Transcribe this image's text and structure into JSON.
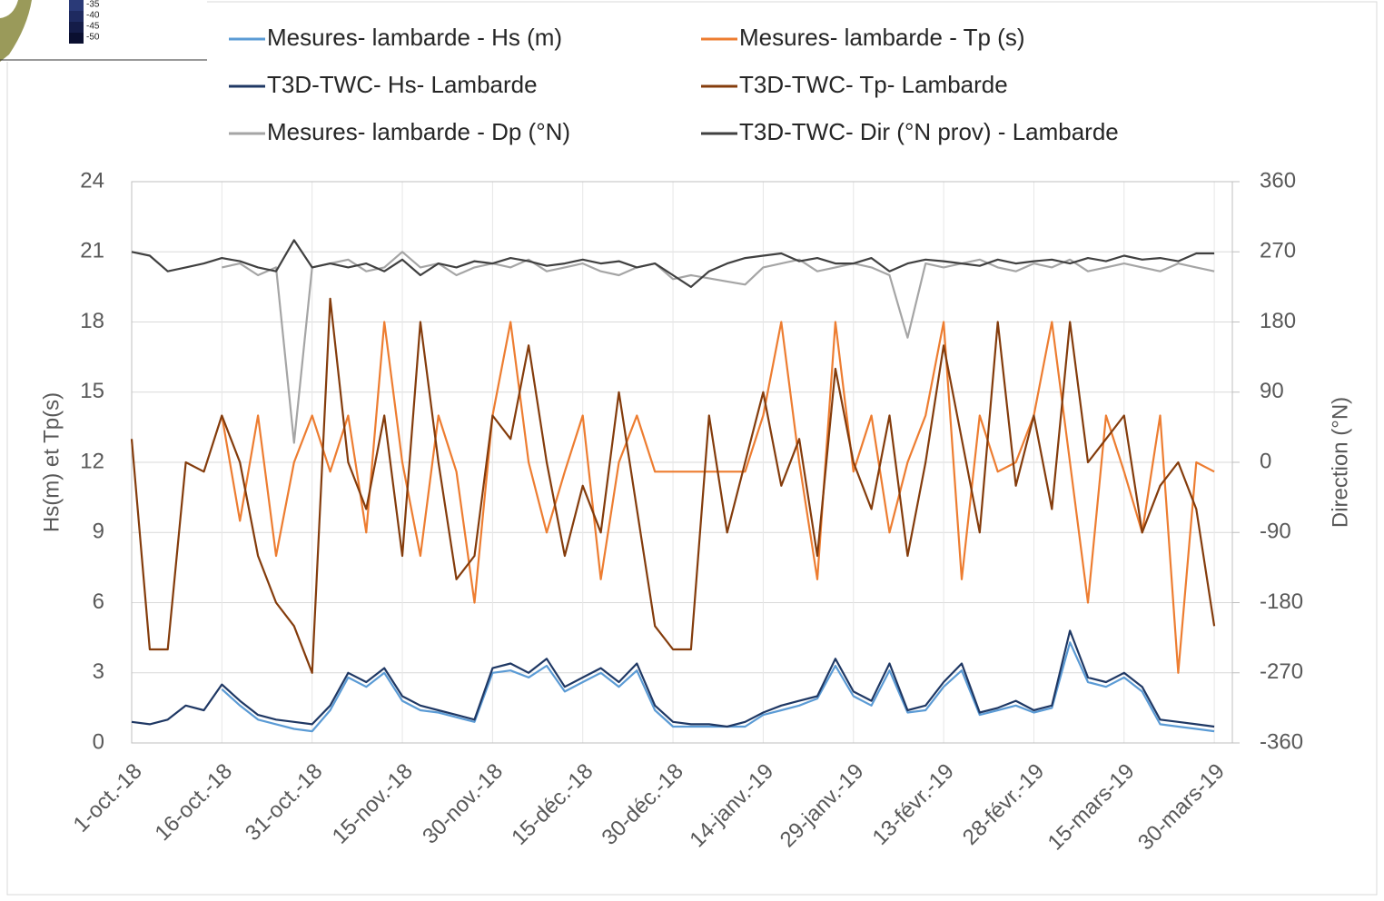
{
  "chart_data": {
    "type": "line",
    "y_label": "Hs(m) et Tp(s)",
    "y2_label": "Direction (°N)",
    "inset_labels": [
      "-35",
      "-40",
      "-45",
      "-50"
    ],
    "x": [
      "2018-10-01",
      "2018-10-04",
      "2018-10-07",
      "2018-10-10",
      "2018-10-13",
      "2018-10-16",
      "2018-10-19",
      "2018-10-22",
      "2018-10-25",
      "2018-10-28",
      "2018-10-31",
      "2018-11-03",
      "2018-11-06",
      "2018-11-09",
      "2018-11-12",
      "2018-11-15",
      "2018-11-18",
      "2018-11-21",
      "2018-11-24",
      "2018-11-27",
      "2018-11-30",
      "2018-12-03",
      "2018-12-06",
      "2018-12-09",
      "2018-12-12",
      "2018-12-15",
      "2018-12-18",
      "2018-12-21",
      "2018-12-24",
      "2018-12-27",
      "2018-12-30",
      "2019-01-02",
      "2019-01-05",
      "2019-01-08",
      "2019-01-11",
      "2019-01-14",
      "2019-01-17",
      "2019-01-20",
      "2019-01-23",
      "2019-01-26",
      "2019-01-29",
      "2019-02-01",
      "2019-02-04",
      "2019-02-07",
      "2019-02-10",
      "2019-02-13",
      "2019-02-16",
      "2019-02-19",
      "2019-02-22",
      "2019-02-25",
      "2019-02-28",
      "2019-03-03",
      "2019-03-06",
      "2019-03-09",
      "2019-03-12",
      "2019-03-15",
      "2019-03-18",
      "2019-03-21",
      "2019-03-24",
      "2019-03-27",
      "2019-03-30"
    ],
    "xlim": [
      "2018-10-01",
      "2019-04-02"
    ],
    "xticks": [
      {
        "value": "2018-10-01",
        "label": "1-oct.-18"
      },
      {
        "value": "2018-10-16",
        "label": "16-oct.-18"
      },
      {
        "value": "2018-10-31",
        "label": "31-oct.-18"
      },
      {
        "value": "2018-11-15",
        "label": "15-nov.-18"
      },
      {
        "value": "2018-11-30",
        "label": "30-nov.-18"
      },
      {
        "value": "2018-12-15",
        "label": "15-déc.-18"
      },
      {
        "value": "2018-12-30",
        "label": "30-déc.-18"
      },
      {
        "value": "2019-01-14",
        "label": "14-janv.-19"
      },
      {
        "value": "2019-01-29",
        "label": "29-janv.-19"
      },
      {
        "value": "2019-02-13",
        "label": "13-févr.-19"
      },
      {
        "value": "2019-02-28",
        "label": "28-févr.-19"
      },
      {
        "value": "2019-03-15",
        "label": "15-mars-19"
      },
      {
        "value": "2019-03-30",
        "label": "30-mars-19"
      }
    ],
    "ylim": [
      0,
      24
    ],
    "yticks": [
      0,
      3,
      6,
      9,
      12,
      15,
      18,
      21,
      24
    ],
    "y2lim": [
      -360,
      360
    ],
    "y2ticks": [
      -360,
      -270,
      -180,
      -90,
      0,
      90,
      180,
      270,
      360
    ],
    "grid": true,
    "series": [
      {
        "name": "Mesures- lambarde - Hs (m)",
        "color": "#5b9bd5",
        "values": [
          null,
          null,
          null,
          null,
          null,
          2.3,
          1.6,
          1.0,
          0.8,
          0.6,
          0.5,
          1.4,
          2.8,
          2.4,
          3.0,
          1.8,
          1.4,
          1.3,
          1.1,
          0.9,
          3.0,
          3.1,
          2.8,
          3.3,
          2.2,
          2.6,
          3.0,
          2.4,
          3.1,
          1.4,
          0.7,
          0.7,
          0.7,
          0.7,
          0.7,
          1.2,
          1.4,
          1.6,
          1.9,
          3.3,
          2.0,
          1.6,
          3.1,
          1.3,
          1.4,
          2.4,
          3.1,
          1.2,
          1.4,
          1.6,
          1.3,
          1.5,
          4.3,
          2.6,
          2.4,
          2.8,
          2.2,
          0.8,
          0.7,
          0.6,
          0.5
        ]
      },
      {
        "name": "Mesures- lambarde - Tp (s)",
        "color": "#ed7d31",
        "values": [
          null,
          null,
          null,
          null,
          null,
          14,
          9.5,
          14,
          8,
          12,
          14,
          11.6,
          14,
          9,
          18,
          12,
          8,
          14,
          11.6,
          6,
          14,
          18,
          12,
          9,
          11.6,
          14,
          7,
          12,
          14,
          11.6,
          11.6,
          11.6,
          11.6,
          11.6,
          11.6,
          14,
          18,
          12,
          7,
          18,
          11.6,
          14,
          9,
          12,
          14,
          18,
          7,
          14,
          11.6,
          12,
          14,
          18,
          12,
          6,
          14,
          11.6,
          9,
          14,
          3,
          12,
          11.6
        ]
      },
      {
        "name": "T3D-TWC- Hs- Lambarde",
        "color": "#1f3864",
        "values": [
          0.9,
          0.8,
          1.0,
          1.6,
          1.4,
          2.5,
          1.8,
          1.2,
          1.0,
          0.9,
          0.8,
          1.6,
          3.0,
          2.6,
          3.2,
          2.0,
          1.6,
          1.4,
          1.2,
          1.0,
          3.2,
          3.4,
          3.0,
          3.6,
          2.4,
          2.8,
          3.2,
          2.6,
          3.4,
          1.6,
          0.9,
          0.8,
          0.8,
          0.7,
          0.9,
          1.3,
          1.6,
          1.8,
          2.0,
          3.6,
          2.2,
          1.8,
          3.4,
          1.4,
          1.6,
          2.6,
          3.4,
          1.3,
          1.5,
          1.8,
          1.4,
          1.6,
          4.8,
          2.8,
          2.6,
          3.0,
          2.4,
          1.0,
          0.9,
          0.8,
          0.7
        ]
      },
      {
        "name": "T3D-TWC- Tp- Lambarde",
        "color": "#843c0c",
        "values": [
          13,
          4,
          4,
          12,
          11.6,
          14,
          12,
          8,
          6,
          5,
          3,
          19,
          12,
          10,
          14,
          8,
          18,
          12,
          7,
          8,
          14,
          13,
          17,
          12,
          8,
          11,
          9,
          15,
          10,
          5,
          4,
          4,
          14,
          9,
          12,
          15,
          11,
          13,
          8,
          16,
          12,
          10,
          14,
          8,
          12,
          17,
          13,
          9,
          18,
          11,
          14,
          10,
          18,
          12,
          13,
          14,
          9,
          11,
          12,
          10,
          5
        ]
      },
      {
        "name": "Mesures- lambarde - Dp (°N)",
        "color": "#a5a5a5",
        "axis": "y2",
        "values": [
          null,
          null,
          null,
          null,
          null,
          250,
          255,
          240,
          250,
          25,
          250,
          255,
          260,
          245,
          250,
          270,
          250,
          255,
          240,
          250,
          255,
          250,
          260,
          245,
          250,
          255,
          245,
          240,
          250,
          255,
          235,
          240,
          236,
          232,
          228,
          250,
          255,
          260,
          245,
          250,
          255,
          250,
          240,
          160,
          255,
          250,
          255,
          260,
          250,
          245,
          255,
          250,
          260,
          245,
          250,
          255,
          250,
          245,
          255,
          250,
          245
        ]
      },
      {
        "name": "T3D-TWC- Dir (°N prov) - Lambarde",
        "color": "#404040",
        "axis": "y2",
        "values": [
          270,
          265,
          245,
          250,
          255,
          262,
          258,
          250,
          245,
          285,
          250,
          255,
          250,
          255,
          245,
          260,
          240,
          255,
          250,
          258,
          255,
          262,
          258,
          252,
          255,
          260,
          255,
          258,
          250,
          255,
          240,
          225,
          245,
          255,
          262,
          265,
          268,
          258,
          262,
          255,
          255,
          262,
          245,
          255,
          260,
          258,
          255,
          252,
          260,
          255,
          258,
          260,
          255,
          262,
          258,
          265,
          260,
          262,
          258,
          268,
          268
        ]
      }
    ]
  }
}
